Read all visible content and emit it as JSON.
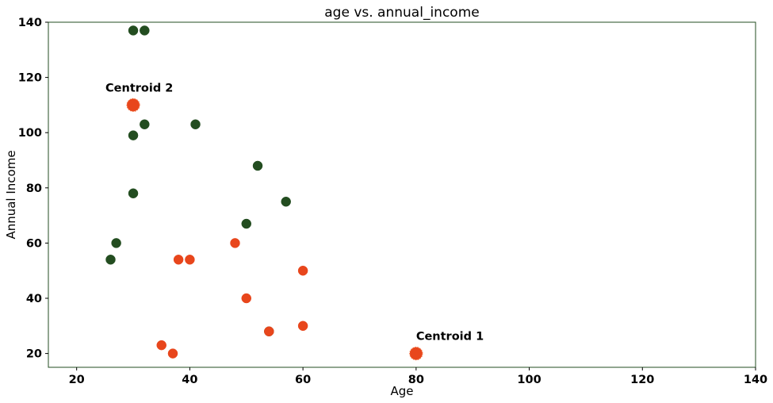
{
  "chart_data": {
    "type": "scatter",
    "title": "age vs. annual_income",
    "xlabel": "Age",
    "ylabel": "Annual Income",
    "xlim": [
      15,
      140
    ],
    "ylim": [
      15,
      140
    ],
    "xticks": [
      20,
      40,
      60,
      80,
      100,
      120,
      140
    ],
    "yticks": [
      20,
      40,
      60,
      80,
      100,
      120,
      140
    ],
    "grid": false,
    "series": [
      {
        "color": "#234d20",
        "points": [
          {
            "x": 30,
            "y": 137
          },
          {
            "x": 32,
            "y": 137
          },
          {
            "x": 32,
            "y": 103
          },
          {
            "x": 41,
            "y": 103
          },
          {
            "x": 30,
            "y": 99
          },
          {
            "x": 52,
            "y": 88
          },
          {
            "x": 30,
            "y": 78
          },
          {
            "x": 57,
            "y": 75
          },
          {
            "x": 50,
            "y": 67
          },
          {
            "x": 27,
            "y": 60
          },
          {
            "x": 26,
            "y": 54
          },
          {
            "x": 54,
            "y": 28
          }
        ]
      },
      {
        "color": "#e8461c",
        "points": [
          {
            "x": 48,
            "y": 60
          },
          {
            "x": 38,
            "y": 54
          },
          {
            "x": 40,
            "y": 54
          },
          {
            "x": 60,
            "y": 50
          },
          {
            "x": 50,
            "y": 40
          },
          {
            "x": 60,
            "y": 30
          },
          {
            "x": 54,
            "y": 28
          },
          {
            "x": 35,
            "y": 23
          },
          {
            "x": 37,
            "y": 20
          }
        ]
      }
    ],
    "centroids": [
      {
        "label": "Centroid 1",
        "x": 80,
        "y": 20,
        "color": "#e8461c"
      },
      {
        "label": "Centroid 2",
        "x": 30,
        "y": 110,
        "color": "#e8461c"
      }
    ]
  }
}
